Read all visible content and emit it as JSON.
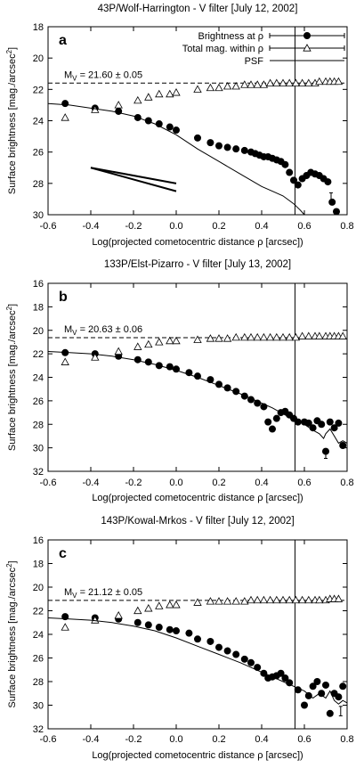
{
  "chart_data": [
    {
      "type": "scatter",
      "title": "43P/Wolf-Harrington - V filter [July 12, 2002]",
      "panel_label": "a",
      "xlabel": "Log(projected cometocentric distance ρ [arcsec])",
      "ylabel": "Surface brightness [mag./arcsec²]",
      "xlim": [
        -0.6,
        0.8
      ],
      "ylim": [
        30,
        18
      ],
      "x_ticks": [
        "-0.6",
        "-0.4",
        "-0.2",
        "0.0",
        "0.2",
        "0.4",
        "0.6",
        "0.8"
      ],
      "y_ticks": [
        "18",
        "20",
        "22",
        "24",
        "26",
        "28",
        "30"
      ],
      "legend": {
        "position": "top-right",
        "entries": [
          "Brightness at ρ",
          "Total mag. within ρ",
          "PSF"
        ]
      },
      "annotation": {
        "text_main": "M",
        "text_sub": "V",
        "text_rest": " = 21.60 ± 0.05",
        "value": 21.6
      },
      "vline_x": 0.556,
      "series": [
        {
          "name": "Brightness at ρ",
          "marker": "filled-circle",
          "x": [
            -0.52,
            -0.38,
            -0.27,
            -0.18,
            -0.13,
            -0.08,
            -0.03,
            0.0,
            0.1,
            0.16,
            0.2,
            0.24,
            0.28,
            0.32,
            0.35,
            0.37,
            0.39,
            0.41,
            0.43,
            0.45,
            0.47,
            0.49,
            0.51,
            0.53,
            0.55,
            0.57,
            0.59,
            0.61,
            0.63,
            0.65,
            0.67,
            0.69,
            0.71,
            0.73,
            0.75
          ],
          "y": [
            22.9,
            23.2,
            23.4,
            23.8,
            24.0,
            24.2,
            24.4,
            24.6,
            25.1,
            25.4,
            25.6,
            25.7,
            25.8,
            25.9,
            26.0,
            26.1,
            26.2,
            26.3,
            26.3,
            26.4,
            26.5,
            26.6,
            26.8,
            27.3,
            27.8,
            28.1,
            27.7,
            27.5,
            27.3,
            27.4,
            27.5,
            27.7,
            27.9,
            29.2,
            29.8
          ],
          "error_x": 0.725,
          "error_y": 28.9,
          "error_size": 0.3
        },
        {
          "name": "Total mag. within ρ",
          "marker": "open-triangle",
          "x": [
            -0.52,
            -0.38,
            -0.27,
            -0.18,
            -0.13,
            -0.08,
            -0.03,
            0.0,
            0.1,
            0.16,
            0.2,
            0.24,
            0.28,
            0.32,
            0.35,
            0.38,
            0.41,
            0.44,
            0.47,
            0.5,
            0.53,
            0.56,
            0.59,
            0.62,
            0.65,
            0.67,
            0.7,
            0.72,
            0.74,
            0.76
          ],
          "y": [
            23.8,
            23.3,
            23.0,
            22.7,
            22.5,
            22.3,
            22.3,
            22.2,
            22.0,
            21.9,
            21.9,
            21.8,
            21.8,
            21.7,
            21.7,
            21.7,
            21.7,
            21.6,
            21.6,
            21.6,
            21.6,
            21.6,
            21.6,
            21.6,
            21.6,
            21.5,
            21.5,
            21.5,
            21.5,
            21.5
          ]
        },
        {
          "name": "PSF",
          "marker": "line",
          "x": [
            -0.6,
            -0.5,
            -0.4,
            -0.3,
            -0.2,
            -0.1,
            0.0,
            0.1,
            0.2,
            0.3,
            0.35,
            0.4,
            0.45,
            0.5,
            0.55,
            0.58,
            0.6,
            0.62
          ],
          "y": [
            22.9,
            23.0,
            23.2,
            23.4,
            23.7,
            24.2,
            24.9,
            25.8,
            26.6,
            27.4,
            27.8,
            28.2,
            28.5,
            28.8,
            29.3,
            29.7,
            30.0,
            30.0
          ]
        }
      ],
      "slope_lines": [
        {
          "x": [
            -0.4,
            0.0
          ],
          "y": [
            27.0,
            28.0
          ]
        },
        {
          "x": [
            -0.4,
            0.0
          ],
          "y": [
            27.0,
            28.5
          ]
        }
      ]
    },
    {
      "type": "scatter",
      "title": "133P/Elst-Pizarro - V filter [July 13, 2002]",
      "panel_label": "b",
      "xlabel": "Log(projected cometocentric distance ρ [arcsec])",
      "ylabel": "Surface brightness [mag./arcsec²]",
      "xlim": [
        -0.6,
        0.8
      ],
      "ylim": [
        32,
        16
      ],
      "x_ticks": [
        "-0.6",
        "-0.4",
        "-0.2",
        "0.0",
        "0.2",
        "0.4",
        "0.6",
        "0.8"
      ],
      "y_ticks": [
        "16",
        "18",
        "20",
        "22",
        "24",
        "26",
        "28",
        "30",
        "32"
      ],
      "annotation": {
        "text_main": "M",
        "text_sub": "V",
        "text_rest": " = 20.63 ± 0.06",
        "value": 20.63
      },
      "vline_x": 0.556,
      "series": [
        {
          "name": "Brightness at ρ",
          "marker": "filled-circle",
          "x": [
            -0.52,
            -0.38,
            -0.27,
            -0.18,
            -0.13,
            -0.08,
            -0.03,
            0.0,
            0.06,
            0.1,
            0.16,
            0.2,
            0.24,
            0.28,
            0.32,
            0.35,
            0.38,
            0.41,
            0.43,
            0.45,
            0.47,
            0.49,
            0.51,
            0.53,
            0.55,
            0.57,
            0.6,
            0.62,
            0.64,
            0.66,
            0.68,
            0.7,
            0.72,
            0.74,
            0.76,
            0.78
          ],
          "y": [
            21.9,
            22.0,
            22.2,
            22.5,
            22.7,
            23.0,
            23.1,
            23.3,
            23.6,
            23.9,
            24.2,
            24.6,
            24.9,
            25.2,
            25.6,
            25.9,
            26.2,
            26.5,
            27.8,
            28.4,
            27.5,
            27.0,
            26.9,
            27.2,
            27.5,
            27.8,
            27.8,
            27.9,
            28.3,
            27.7,
            28.0,
            30.3,
            27.8,
            28.3,
            27.9,
            29.8
          ],
          "error_x": 0.7,
          "error_y": 30.5,
          "error_size": 0.4
        },
        {
          "name": "Total mag. within ρ",
          "marker": "open-triangle",
          "x": [
            -0.52,
            -0.38,
            -0.27,
            -0.18,
            -0.13,
            -0.08,
            -0.03,
            0.0,
            0.1,
            0.16,
            0.2,
            0.24,
            0.28,
            0.32,
            0.35,
            0.38,
            0.41,
            0.44,
            0.47,
            0.5,
            0.53,
            0.56,
            0.59,
            0.62,
            0.65,
            0.67,
            0.7,
            0.72,
            0.74,
            0.76,
            0.78
          ],
          "y": [
            22.7,
            22.3,
            21.8,
            21.4,
            21.2,
            21.0,
            20.9,
            20.9,
            20.8,
            20.7,
            20.7,
            20.7,
            20.6,
            20.6,
            20.6,
            20.6,
            20.6,
            20.6,
            20.6,
            20.6,
            20.6,
            20.6,
            20.5,
            20.5,
            20.5,
            20.5,
            20.5,
            20.5,
            20.5,
            20.5,
            20.5
          ]
        },
        {
          "name": "PSF",
          "marker": "line",
          "x": [
            -0.6,
            -0.5,
            -0.4,
            -0.3,
            -0.2,
            -0.1,
            0.0,
            0.1,
            0.2,
            0.3,
            0.4,
            0.45,
            0.5,
            0.55,
            0.6,
            0.64,
            0.67,
            0.69,
            0.7,
            0.72,
            0.74,
            0.76,
            0.78,
            0.8
          ],
          "y": [
            21.8,
            21.9,
            22.0,
            22.2,
            22.5,
            22.9,
            23.4,
            24.0,
            24.7,
            25.4,
            26.2,
            26.6,
            27.1,
            27.6,
            28.0,
            28.5,
            28.8,
            29.2,
            28.8,
            28.4,
            29.0,
            29.6,
            29.4,
            29.6
          ]
        }
      ]
    },
    {
      "type": "scatter",
      "title": "143P/Kowal-Mrkos - V filter [July 12, 2002]",
      "panel_label": "c",
      "xlabel": "Log(projected cometocentric distance ρ [arcsec])",
      "ylabel": "Surface brightness [mag./arcsec²]",
      "xlim": [
        -0.6,
        0.8
      ],
      "ylim": [
        32,
        16
      ],
      "x_ticks": [
        "-0.6",
        "-0.4",
        "-0.2",
        "0.0",
        "0.2",
        "0.4",
        "0.6",
        "0.8"
      ],
      "y_ticks": [
        "16",
        "18",
        "20",
        "22",
        "24",
        "26",
        "28",
        "30",
        "32"
      ],
      "annotation": {
        "text_main": "M",
        "text_sub": "V",
        "text_rest": " = 21.12 ± 0.05",
        "value": 21.12
      },
      "vline_x": 0.556,
      "series": [
        {
          "name": "Brightness at ρ",
          "marker": "filled-circle",
          "x": [
            -0.52,
            -0.38,
            -0.27,
            -0.18,
            -0.13,
            -0.08,
            -0.03,
            0.0,
            0.06,
            0.1,
            0.16,
            0.2,
            0.24,
            0.28,
            0.32,
            0.35,
            0.38,
            0.41,
            0.43,
            0.45,
            0.47,
            0.49,
            0.51,
            0.53,
            0.57,
            0.6,
            0.62,
            0.64,
            0.66,
            0.68,
            0.7,
            0.72,
            0.74,
            0.76,
            0.78
          ],
          "y": [
            22.5,
            22.6,
            22.7,
            23.0,
            23.2,
            23.4,
            23.6,
            23.7,
            23.9,
            24.4,
            24.6,
            25.1,
            25.4,
            25.7,
            26.1,
            26.4,
            26.8,
            27.3,
            27.7,
            27.6,
            27.5,
            27.3,
            27.7,
            28.1,
            28.7,
            30.0,
            29.2,
            28.4,
            28.0,
            29.0,
            28.3,
            30.7,
            29.0,
            29.3,
            28.4
          ],
          "error_x": 0.77,
          "error_y": 30.5,
          "error_size": 0.4
        },
        {
          "name": "Total mag. within ρ",
          "marker": "open-triangle",
          "x": [
            -0.52,
            -0.38,
            -0.27,
            -0.18,
            -0.13,
            -0.08,
            -0.03,
            0.0,
            0.1,
            0.16,
            0.2,
            0.24,
            0.28,
            0.32,
            0.35,
            0.38,
            0.41,
            0.44,
            0.47,
            0.5,
            0.53,
            0.56,
            0.59,
            0.62,
            0.65,
            0.67,
            0.7,
            0.72,
            0.74,
            0.76
          ],
          "y": [
            23.4,
            22.8,
            22.4,
            22.0,
            21.8,
            21.6,
            21.5,
            21.5,
            21.3,
            21.2,
            21.2,
            21.2,
            21.2,
            21.2,
            21.1,
            21.1,
            21.1,
            21.1,
            21.1,
            21.1,
            21.1,
            21.1,
            21.1,
            21.1,
            21.1,
            21.1,
            21.1,
            21.0,
            21.0,
            21.0
          ]
        },
        {
          "name": "PSF",
          "marker": "line",
          "x": [
            -0.6,
            -0.5,
            -0.4,
            -0.3,
            -0.2,
            -0.1,
            0.0,
            0.1,
            0.2,
            0.3,
            0.4,
            0.45,
            0.5,
            0.55,
            0.6,
            0.64,
            0.67,
            0.7,
            0.72,
            0.74,
            0.76,
            0.78,
            0.8
          ],
          "y": [
            22.6,
            22.7,
            22.8,
            23.0,
            23.3,
            23.7,
            24.3,
            25.0,
            25.7,
            26.4,
            27.2,
            27.6,
            28.0,
            28.4,
            28.8,
            29.4,
            29.0,
            29.4,
            28.8,
            29.6,
            29.9,
            29.6,
            29.8
          ]
        }
      ]
    }
  ]
}
